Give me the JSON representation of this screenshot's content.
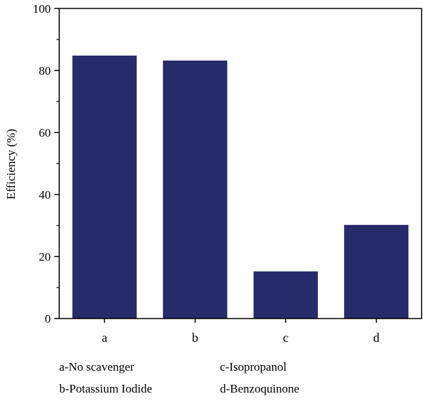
{
  "chart_data": {
    "type": "bar",
    "categories": [
      "a",
      "b",
      "c",
      "d"
    ],
    "values": [
      84.8,
      83.2,
      15.2,
      30.2
    ],
    "title": "",
    "xlabel": "",
    "ylabel": "Efficiency (%)",
    "ylim": [
      0,
      100
    ],
    "yticks": [
      0,
      20,
      40,
      60,
      80,
      100
    ],
    "grid": false,
    "bar_color": "#262b6b",
    "legend_notes": [
      "a-No scavenger",
      "b-Potassium Iodide",
      "c-Isopropanol",
      "d-Benzoquinone"
    ]
  }
}
